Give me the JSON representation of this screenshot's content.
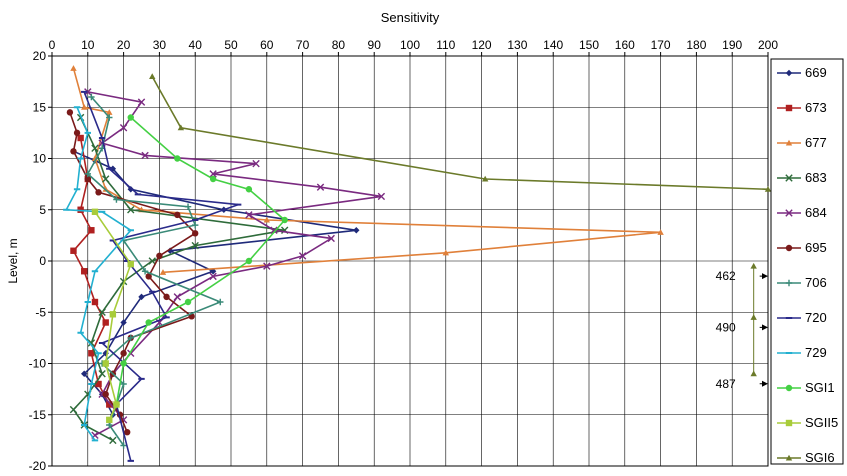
{
  "chart_data": {
    "type": "line",
    "title": "",
    "xlabel": "Sensitivity",
    "ylabel": "Level, m",
    "xlim": [
      0,
      200
    ],
    "ylim": [
      -20,
      20
    ],
    "x_ticks": [
      0,
      10,
      20,
      30,
      40,
      50,
      60,
      70,
      80,
      90,
      100,
      110,
      120,
      130,
      140,
      150,
      160,
      170,
      180,
      190,
      200
    ],
    "y_ticks": [
      20,
      15,
      10,
      5,
      0,
      -5,
      -10,
      -15,
      -20
    ],
    "x_axis_position": "top",
    "grid": true,
    "legend_position": "right",
    "series": [
      {
        "name": "669",
        "color": "#1f2a7a",
        "marker": "diamond",
        "points": [
          [
            6,
            10.7
          ],
          [
            12,
            9.8
          ],
          [
            17,
            9
          ],
          [
            22,
            7
          ],
          [
            48,
            5
          ],
          [
            85,
            3
          ],
          [
            33,
            1
          ],
          [
            45,
            -1
          ],
          [
            25,
            -3.5
          ],
          [
            20,
            -6
          ],
          [
            15,
            -9
          ],
          [
            9,
            -11
          ],
          [
            14,
            -13
          ],
          [
            17,
            -15
          ]
        ]
      },
      {
        "name": "673",
        "color": "#b02020",
        "marker": "square",
        "points": [
          [
            8,
            12
          ],
          [
            10,
            8
          ],
          [
            8,
            5
          ],
          [
            11,
            3
          ],
          [
            6,
            1
          ],
          [
            9,
            -1
          ],
          [
            12,
            -4
          ],
          [
            15,
            -6
          ],
          [
            11,
            -9
          ],
          [
            13,
            -12
          ],
          [
            16,
            -14
          ]
        ]
      },
      {
        "name": "677",
        "color": "#e0803a",
        "marker": "triangle",
        "points": [
          [
            6,
            18.8
          ],
          [
            9,
            15
          ],
          [
            16,
            14.5
          ],
          [
            12,
            10
          ],
          [
            15,
            7
          ],
          [
            25,
            5
          ],
          [
            60,
            4
          ],
          [
            170,
            2.8
          ],
          [
            110,
            0.8
          ],
          [
            31,
            -1.1
          ]
        ]
      },
      {
        "name": "683",
        "color": "#2e6b3a",
        "marker": "x",
        "points": [
          [
            8,
            14
          ],
          [
            12,
            11
          ],
          [
            15,
            8
          ],
          [
            22,
            5
          ],
          [
            65,
            3
          ],
          [
            40,
            1.5
          ],
          [
            28,
            0
          ],
          [
            20,
            -2
          ],
          [
            14,
            -5
          ],
          [
            11,
            -8
          ],
          [
            14,
            -11
          ],
          [
            10,
            -13
          ],
          [
            6,
            -14.5
          ],
          [
            9,
            -16
          ],
          [
            17,
            -17.5
          ]
        ]
      },
      {
        "name": "684",
        "color": "#7a2a80",
        "marker": "x",
        "points": [
          [
            10,
            16.5
          ],
          [
            25,
            15.5
          ],
          [
            20,
            13
          ],
          [
            14,
            11.5
          ],
          [
            26,
            10.3
          ],
          [
            57,
            9.5
          ],
          [
            45,
            8.5
          ],
          [
            75,
            7.2
          ],
          [
            92,
            6.3
          ],
          [
            55,
            4.5
          ],
          [
            62,
            3
          ],
          [
            78,
            2.2
          ],
          [
            70,
            0.5
          ],
          [
            60,
            -0.5
          ],
          [
            45,
            -1.5
          ],
          [
            35,
            -3.5
          ],
          [
            30,
            -6
          ],
          [
            22,
            -9
          ],
          [
            17,
            -11
          ],
          [
            14,
            -13
          ],
          [
            20,
            -15.5
          ],
          [
            12,
            -17
          ]
        ]
      },
      {
        "name": "695",
        "color": "#7a1a1a",
        "marker": "circle",
        "points": [
          [
            5,
            14.5
          ],
          [
            7,
            12.5
          ],
          [
            6,
            10.7
          ],
          [
            10,
            8
          ],
          [
            13,
            6.7
          ],
          [
            35,
            4.5
          ],
          [
            40,
            2.7
          ],
          [
            30,
            0.5
          ],
          [
            27,
            -1.5
          ],
          [
            32,
            -3.5
          ],
          [
            39,
            -5.4
          ],
          [
            22,
            -7.5
          ],
          [
            20,
            -9
          ],
          [
            17,
            -11
          ],
          [
            15,
            -13
          ],
          [
            19,
            -15
          ],
          [
            21,
            -16.7
          ]
        ]
      },
      {
        "name": "706",
        "color": "#3a8a78",
        "marker": "plus",
        "points": [
          [
            11,
            16
          ],
          [
            16,
            14
          ],
          [
            14,
            11
          ],
          [
            10,
            8.5
          ],
          [
            18,
            6
          ],
          [
            38,
            5.3
          ],
          [
            40,
            3.5
          ],
          [
            20,
            2
          ],
          [
            26,
            -1
          ],
          [
            47,
            -4
          ],
          [
            22,
            -7.5
          ],
          [
            14,
            -10
          ],
          [
            20,
            -12
          ],
          [
            16,
            -16
          ],
          [
            20,
            -18
          ]
        ]
      },
      {
        "name": "720",
        "color": "#2a2a8a",
        "marker": "dash",
        "points": [
          [
            9,
            16.5
          ],
          [
            14,
            12
          ],
          [
            16,
            9
          ],
          [
            24,
            6.5
          ],
          [
            52,
            5.5
          ],
          [
            40,
            4
          ],
          [
            17,
            2
          ],
          [
            21,
            0
          ],
          [
            28,
            -3
          ],
          [
            32,
            -5.5
          ],
          [
            14,
            -8
          ],
          [
            25,
            -11.5
          ],
          [
            18,
            -14
          ],
          [
            22,
            -19.5
          ]
        ]
      },
      {
        "name": "729",
        "color": "#22b0d0",
        "marker": "dash",
        "points": [
          [
            7,
            15
          ],
          [
            10,
            12.5
          ],
          [
            8,
            10
          ],
          [
            7,
            7
          ],
          [
            4,
            5
          ],
          [
            14,
            4.8
          ],
          [
            22,
            3
          ],
          [
            12,
            -1
          ],
          [
            10,
            -4
          ],
          [
            8,
            -7
          ],
          [
            13,
            -9
          ],
          [
            11,
            -12
          ],
          [
            9,
            -16
          ],
          [
            12,
            -17.5
          ]
        ]
      },
      {
        "name": "SGI1",
        "color": "#44d044",
        "marker": "circle",
        "points": [
          [
            22,
            14
          ],
          [
            35,
            10
          ],
          [
            45,
            8
          ],
          [
            55,
            7
          ],
          [
            65,
            4
          ],
          [
            55,
            0
          ],
          [
            38,
            -4
          ],
          [
            27,
            -6
          ],
          [
            20,
            -10
          ],
          [
            18,
            -14
          ]
        ]
      },
      {
        "name": "SGII5",
        "color": "#a8cc3a",
        "marker": "square",
        "points": [
          [
            12,
            4.8
          ],
          [
            22,
            -0.3
          ],
          [
            17,
            -5.2
          ],
          [
            15,
            -10
          ],
          [
            18,
            -14
          ],
          [
            16,
            -15.5
          ]
        ]
      },
      {
        "name": "SGI6",
        "color": "#6b7a2a",
        "marker": "triangle",
        "points": [
          [
            28,
            18
          ],
          [
            36,
            13
          ],
          [
            121,
            8
          ],
          [
            200,
            7
          ]
        ]
      }
    ],
    "annotations": [
      {
        "text": "462",
        "x": 196,
        "y": -0.5
      },
      {
        "text": "490",
        "x": 196,
        "y": -5.5
      },
      {
        "text": "487",
        "x": 196,
        "y": -11
      }
    ]
  }
}
